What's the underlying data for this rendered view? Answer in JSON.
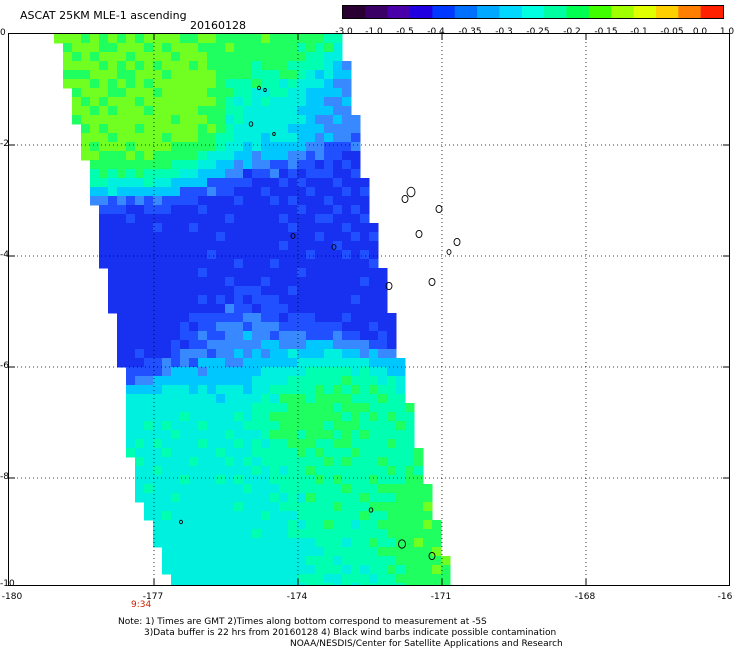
{
  "header": {
    "title": "ASCAT 25KM MLE-1 ascending",
    "date": "20160128"
  },
  "colorbar": {
    "colors": [
      "#2a0033",
      "#3b0066",
      "#4a00a8",
      "#2000e0",
      "#0038ff",
      "#0070ff",
      "#00a8ff",
      "#00d8ff",
      "#00ffe0",
      "#00ffa0",
      "#00ff50",
      "#40ff00",
      "#a0ff00",
      "#e0ff00",
      "#ffd000",
      "#ff8000",
      "#ff2000"
    ],
    "labels": [
      "-3.0",
      "-1.0",
      "-0.5",
      "-0.4",
      "-0.35",
      "-0.3",
      "-0.25",
      "-0.2",
      "-0.15",
      "-0.1",
      "-0.05",
      "0.0",
      "1.0"
    ]
  },
  "axes": {
    "y_labels": [
      "0",
      "-2",
      "-4",
      "-6",
      "-8",
      "-10"
    ],
    "x_labels": [
      "-180",
      "-177",
      "-174",
      "-171",
      "-168",
      "-16"
    ]
  },
  "map": {
    "swath_colors": {
      "deep_blue": "#1830f0",
      "blue": "#2050ff",
      "light_blue": "#3888ff",
      "cyan_blue": "#00c8ff",
      "cyan": "#00f0e0",
      "aqua_green": "#00ffb0",
      "green": "#20ff60",
      "lime": "#70ff20"
    }
  },
  "time_label": "9:34",
  "notes": {
    "line1": "Note: 1) Times are GMT 2)Times along bottom correspond to measurement at -5S",
    "line2": "3)Data buffer is 22 hrs from 20160128 4) Black wind barbs indicate possible contamination",
    "line3": "NOAA/NESDIS/Center for Satellite Applications and Research"
  }
}
